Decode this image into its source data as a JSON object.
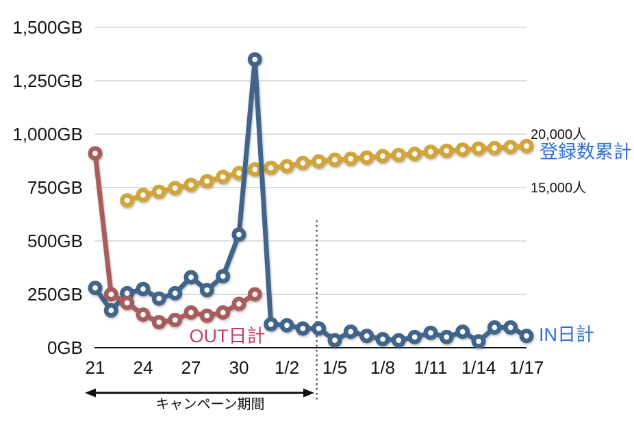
{
  "page": {
    "background": "#ffffff"
  },
  "chart_data": {
    "type": "line",
    "title": "",
    "xlabel": "",
    "ylabel_left": "GB",
    "ylabel_right": "人",
    "grid": true,
    "x_categories": [
      "12/21",
      "12/22",
      "12/23",
      "12/24",
      "12/25",
      "12/26",
      "12/27",
      "12/28",
      "12/29",
      "12/30",
      "12/31",
      "1/1",
      "1/2",
      "1/3",
      "1/4",
      "1/5",
      "1/6",
      "1/7",
      "1/8",
      "1/9",
      "1/10",
      "1/11",
      "1/12",
      "1/13",
      "1/14",
      "1/15",
      "1/16",
      "1/17"
    ],
    "x_ticks": [
      {
        "index": 0,
        "label": "21"
      },
      {
        "index": 3,
        "label": "24"
      },
      {
        "index": 6,
        "label": "27"
      },
      {
        "index": 9,
        "label": "30"
      },
      {
        "index": 12,
        "label": "1/2"
      },
      {
        "index": 15,
        "label": "1/5"
      },
      {
        "index": 18,
        "label": "1/8"
      },
      {
        "index": 21,
        "label": "1/11"
      },
      {
        "index": 24,
        "label": "1/14"
      },
      {
        "index": 27,
        "label": "1/17"
      }
    ],
    "left_axis": {
      "min": 0,
      "max": 1500,
      "ticks": [
        {
          "value": 0,
          "label": "0GB"
        },
        {
          "value": 250,
          "label": "250GB"
        },
        {
          "value": 500,
          "label": "500GB"
        },
        {
          "value": 750,
          "label": "750GB"
        },
        {
          "value": 1000,
          "label": "1,000GB"
        },
        {
          "value": 1250,
          "label": "1,250GB"
        },
        {
          "value": 1500,
          "label": "1,500GB"
        }
      ]
    },
    "right_axis": {
      "ticks": [
        {
          "value": 20000,
          "label": "20,000人"
        },
        {
          "value": 15000,
          "label": "15,000人"
        }
      ]
    },
    "series": [
      {
        "name": "登録数累計",
        "axis": "right",
        "start_index": 2,
        "color": "#d2a43c",
        "label_color": "#2e6ed9",
        "values": [
          13800,
          14300,
          14600,
          14950,
          15250,
          15600,
          16000,
          16350,
          16700,
          16850,
          17000,
          17300,
          17450,
          17600,
          17700,
          17800,
          17950,
          18050,
          18150,
          18350,
          18450,
          18550,
          18650,
          18700,
          18800,
          18900
        ]
      },
      {
        "name": "IN日計",
        "axis": "left",
        "start_index": 0,
        "color": "#40648a",
        "label_color": "#2e6ed9",
        "values": [
          280,
          175,
          255,
          275,
          230,
          255,
          330,
          270,
          335,
          530,
          1350,
          110,
          105,
          90,
          90,
          35,
          75,
          55,
          40,
          35,
          50,
          70,
          50,
          75,
          30,
          95,
          95,
          55
        ]
      },
      {
        "name": "OUT日計",
        "axis": "left",
        "start_index": 0,
        "color": "#a85c5c",
        "label_color": "#c43a60",
        "values": [
          910,
          250,
          210,
          155,
          120,
          130,
          165,
          150,
          165,
          205,
          250
        ]
      }
    ],
    "annotations": {
      "dotted_line_category_index": 14,
      "campaign_arrow_label": "キャンペーン期間"
    },
    "colors": {
      "gridline": "#bcbcbc",
      "axis_line": "#111111",
      "tick_text": "#141414",
      "annotation": "#111111"
    }
  }
}
